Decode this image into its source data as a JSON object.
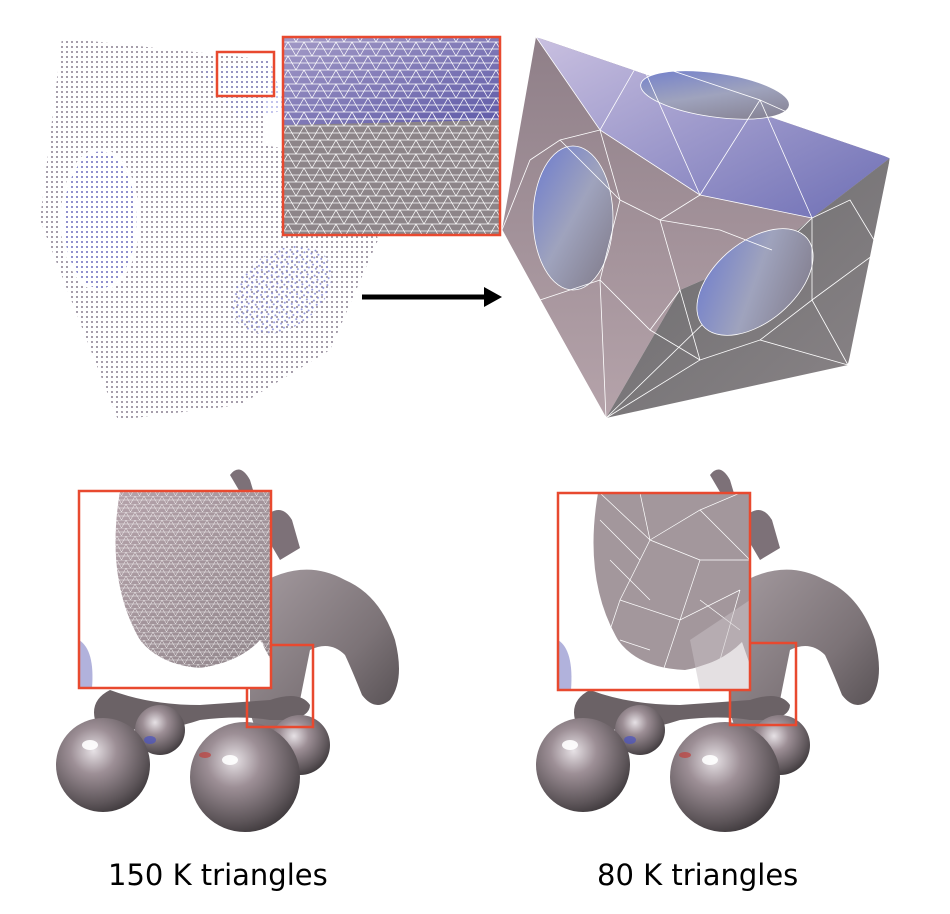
{
  "figure": {
    "top_left": "point-sampled cube with holes",
    "top_right": "remeshed cube with holes",
    "bottom_left": "mesh with inset zoom",
    "bottom_right": "simplified mesh with inset zoom",
    "arrow": "arrow-right",
    "colors": {
      "highlight": "#e8492f",
      "wire": "#ffffff",
      "shade": "#8d8388",
      "tint": "#7b7fd6"
    }
  },
  "captions": {
    "left": "150 K triangles",
    "right": "80 K triangles"
  }
}
